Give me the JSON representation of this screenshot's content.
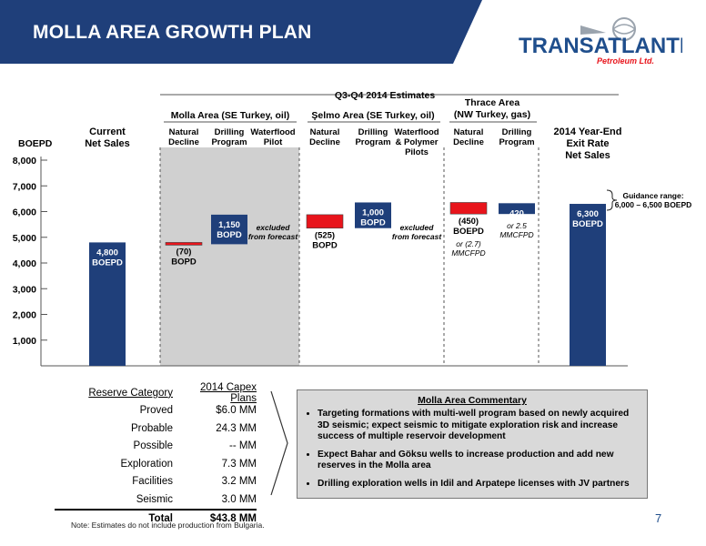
{
  "header": {
    "title": "MOLLA AREA GROWTH PLAN",
    "logo_main": "TRANSATLANTIC",
    "logo_sub": "Petroleum Ltd."
  },
  "colors": {
    "navy": "#1f3f7a",
    "red": "#e8141b",
    "shade": "#d0d0d0"
  },
  "chart_data": {
    "type": "bar",
    "subtype": "waterfall",
    "ylabel": "BOEPD",
    "yticks": [
      "8,000",
      "7,000",
      "6,000",
      "5,000",
      "4,000",
      "3,000",
      "2,000",
      "1,000"
    ],
    "ylim": [
      0,
      8000
    ],
    "group_header": "Q3-Q4 2014 Estimates",
    "groups": [
      {
        "label": "Molla Area (SE Turkey, oil)",
        "shaded": true
      },
      {
        "label": "Şelmo Area (SE Turkey, oil)"
      },
      {
        "label": "Thrace Area\n(NW Turkey, gas)"
      }
    ],
    "categories": [
      "Current\nNet Sales",
      "Natural\nDecline",
      "Drilling\nProgram",
      "Waterflood\nPilot",
      "Natural\nDecline",
      "Drilling\nProgram",
      "Waterflood\n& Polymer\nPilots",
      "Natural\nDecline",
      "Drilling\nProgram",
      "2014 Year-End\nExit Rate\nNet Sales"
    ],
    "bars": [
      {
        "kind": "total",
        "base": 0,
        "top": 4800,
        "label": "4,800\nBOEPD"
      },
      {
        "kind": "decrease",
        "base": 4730,
        "top": 4800,
        "label": "(70)\nBOPD"
      },
      {
        "kind": "increase",
        "base": 4730,
        "top": 5880,
        "label": "1,150\nBOPD"
      },
      {
        "kind": "excluded",
        "label": "excluded\nfrom forecast"
      },
      {
        "kind": "decrease",
        "base": 5355,
        "top": 5880,
        "label": "(525)\nBOPD"
      },
      {
        "kind": "increase",
        "base": 5355,
        "top": 6355,
        "label": "1,000\nBOPD"
      },
      {
        "kind": "excluded",
        "label": "excluded\nfrom forecast"
      },
      {
        "kind": "decrease",
        "base": 5905,
        "top": 6355,
        "label": "(450)\nBOEPD",
        "sub": "or (2.7)\nMMCFPD"
      },
      {
        "kind": "increase",
        "base": 5905,
        "top": 6325,
        "label": "420\nBOEPD",
        "sub": "or 2.5\nMMCFPD"
      },
      {
        "kind": "total",
        "base": 0,
        "top": 6300,
        "label": "6,300\nBOEPD"
      }
    ],
    "annotation": "Guidance range:\n6,000 – 6,500 BOEPD"
  },
  "reserve_table": {
    "headers": [
      "Reserve Category",
      "2014 Capex Plans"
    ],
    "rows": [
      [
        "Proved",
        "$6.0 MM"
      ],
      [
        "Probable",
        "24.3 MM"
      ],
      [
        "Possible",
        "-- MM"
      ],
      [
        "Exploration",
        "7.3 MM"
      ],
      [
        "Facilities",
        "3.2 MM"
      ],
      [
        "Seismic",
        "3.0 MM"
      ]
    ],
    "total": [
      "Total",
      "$43.8 MM"
    ]
  },
  "commentary": {
    "title": "Molla Area Commentary",
    "bullets": [
      "Targeting formations with multi-well program based on newly acquired 3D seismic; expect seismic to mitigate exploration risk and increase success of multiple reservoir development",
      "Expect Bahar and Göksu wells to increase production and add new reserves in the Molla area",
      "Drilling exploration wells in Idil and Arpatepe licenses with JV partners"
    ]
  },
  "footnote": "Note: Estimates do not include production from Bulgaria.",
  "page_number": "7"
}
